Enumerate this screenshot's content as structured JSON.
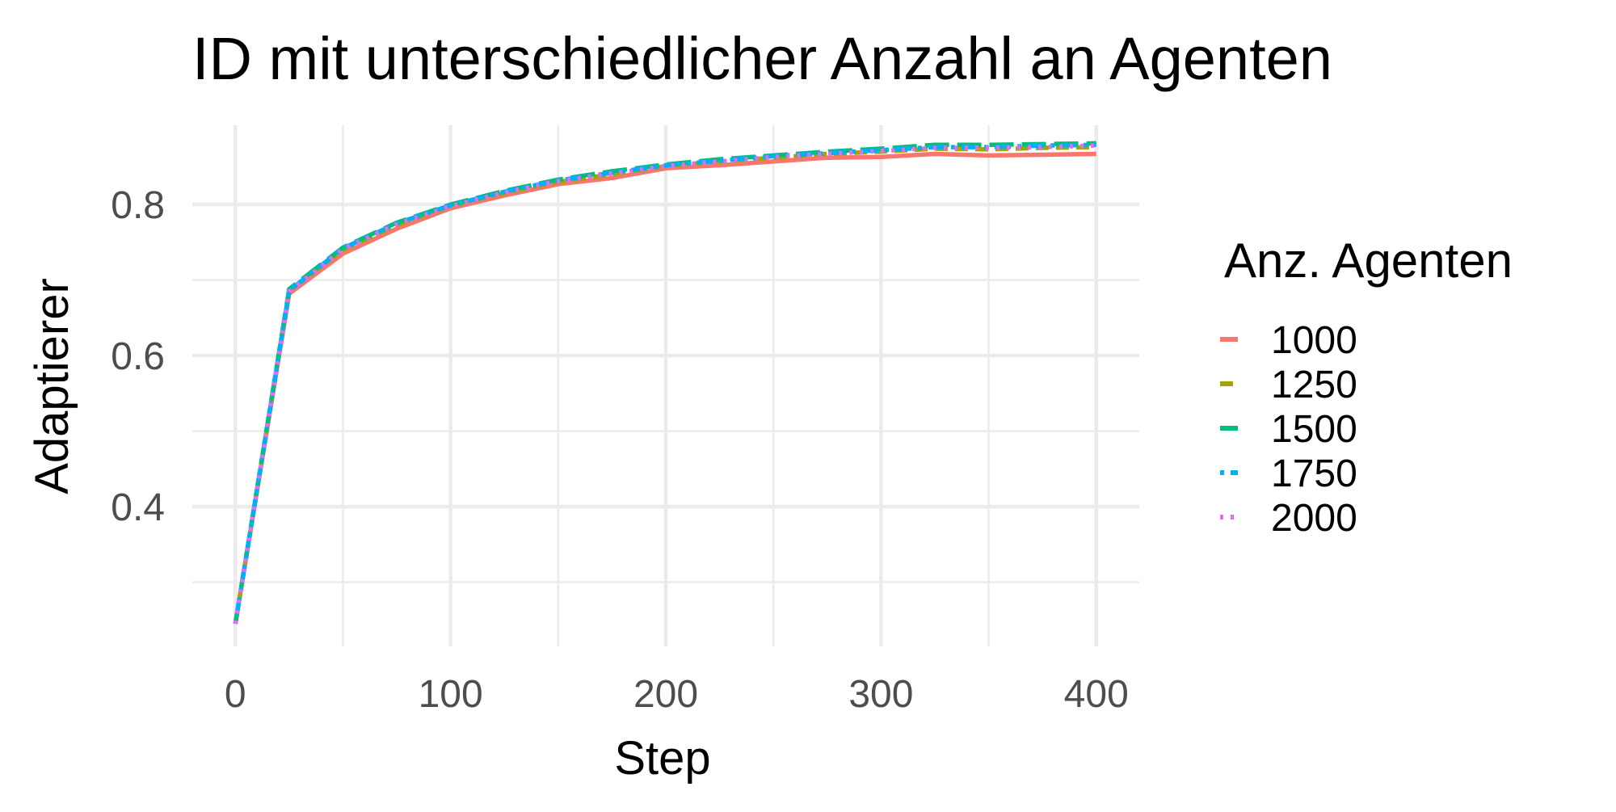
{
  "chart_data": {
    "type": "line",
    "title": "ID mit unterschiedlicher Anzahl an Agenten",
    "xlabel": "Step",
    "ylabel": "Adaptierer",
    "xlim": [
      -20,
      420
    ],
    "ylim": [
      0.215,
      0.905
    ],
    "x_major_ticks": [
      0,
      100,
      200,
      300,
      400
    ],
    "x_tick_labels": [
      "0",
      "100",
      "200",
      "300",
      "400"
    ],
    "x_minor_ticks": [
      50,
      150,
      250,
      350
    ],
    "y_major_ticks": [
      0.4,
      0.6,
      0.8
    ],
    "y_tick_labels": [
      "0.4",
      "0.6",
      "0.8"
    ],
    "y_minor_ticks": [
      0.3,
      0.5,
      0.7
    ],
    "grid": true,
    "legend": {
      "title": "Anz. Agenten",
      "placement": "right"
    },
    "x": [
      0,
      25,
      50,
      75,
      100,
      125,
      150,
      175,
      200,
      225,
      250,
      275,
      300,
      325,
      350,
      375,
      400
    ],
    "series": [
      {
        "name": "1000",
        "color": "#F8766D",
        "dash": "solid",
        "values": [
          0.245,
          0.682,
          0.735,
          0.768,
          0.795,
          0.812,
          0.827,
          0.835,
          0.848,
          0.852,
          0.857,
          0.862,
          0.863,
          0.867,
          0.865,
          0.866,
          0.867
        ]
      },
      {
        "name": "1250",
        "color": "#A3A500",
        "dash": "dash",
        "values": [
          0.245,
          0.686,
          0.74,
          0.773,
          0.798,
          0.815,
          0.83,
          0.84,
          0.851,
          0.857,
          0.862,
          0.867,
          0.87,
          0.874,
          0.873,
          0.875,
          0.876
        ]
      },
      {
        "name": "1500",
        "color": "#00BF7D",
        "dash": "longdash",
        "values": [
          0.245,
          0.688,
          0.743,
          0.776,
          0.8,
          0.818,
          0.833,
          0.844,
          0.853,
          0.86,
          0.865,
          0.87,
          0.874,
          0.879,
          0.879,
          0.88,
          0.881
        ]
      },
      {
        "name": "1750",
        "color": "#00B0F6",
        "dash": "dotdash",
        "values": [
          0.245,
          0.686,
          0.742,
          0.775,
          0.799,
          0.817,
          0.832,
          0.842,
          0.852,
          0.858,
          0.864,
          0.868,
          0.872,
          0.876,
          0.876,
          0.878,
          0.879
        ]
      },
      {
        "name": "2000",
        "color": "#E76BF3",
        "dash": "dotted",
        "values": [
          0.245,
          0.685,
          0.741,
          0.774,
          0.798,
          0.816,
          0.831,
          0.841,
          0.851,
          0.857,
          0.863,
          0.867,
          0.871,
          0.875,
          0.875,
          0.876,
          0.878
        ]
      }
    ]
  }
}
